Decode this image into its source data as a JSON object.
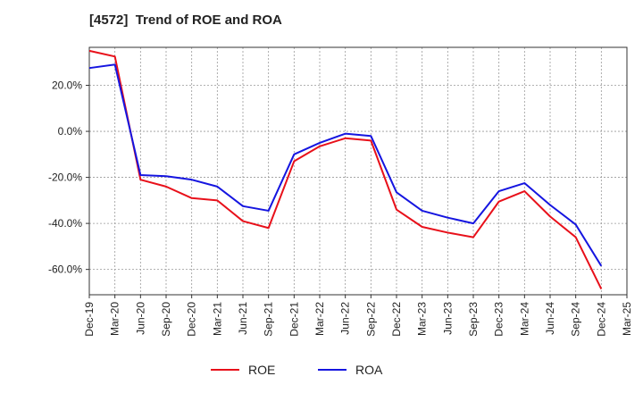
{
  "chart_data": {
    "type": "line",
    "title": "[4572]  Trend of ROE and ROA",
    "xlabel": "",
    "ylabel": "",
    "x_ticks": [
      "Dec-19",
      "Mar-20",
      "Jun-20",
      "Sep-20",
      "Dec-20",
      "Mar-21",
      "Jun-21",
      "Sep-21",
      "Dec-21",
      "Mar-22",
      "Jun-22",
      "Sep-22",
      "Dec-22",
      "Mar-23",
      "Jun-23",
      "Sep-23",
      "Dec-23",
      "Mar-24",
      "Jun-24",
      "Sep-24",
      "Dec-24",
      "Mar-25"
    ],
    "y_ticks": [
      "20.0%",
      "0.0%",
      "-20.0%",
      "-40.0%",
      "-60.0%"
    ],
    "y_tick_values": [
      20,
      0,
      -20,
      -40,
      -60
    ],
    "ylim": [
      -71,
      36.5
    ],
    "grid": true,
    "legend_position": "bottom-center",
    "series": [
      {
        "name": "ROE",
        "color": "#e8101a",
        "x": [
          "Dec-19",
          "Mar-20",
          "Jun-20",
          "Sep-20",
          "Dec-20",
          "Mar-21",
          "Jun-21",
          "Sep-21",
          "Dec-21",
          "Mar-22",
          "Jun-22",
          "Sep-22",
          "Dec-22",
          "Mar-23",
          "Jun-23",
          "Sep-23",
          "Dec-23",
          "Mar-24",
          "Jun-24",
          "Sep-24",
          "Dec-24"
        ],
        "values": [
          35,
          32.5,
          -21,
          -24,
          -29,
          -30,
          -39,
          -42,
          -13,
          -6.5,
          -3,
          -4,
          -34,
          -41.5,
          -44,
          -46,
          -30.5,
          -26,
          -37,
          -46,
          -68.5
        ]
      },
      {
        "name": "ROA",
        "color": "#1515e0",
        "x": [
          "Dec-19",
          "Mar-20",
          "Jun-20",
          "Sep-20",
          "Dec-20",
          "Mar-21",
          "Jun-21",
          "Sep-21",
          "Dec-21",
          "Mar-22",
          "Jun-22",
          "Sep-22",
          "Dec-22",
          "Mar-23",
          "Jun-23",
          "Sep-23",
          "Dec-23",
          "Mar-24",
          "Jun-24",
          "Sep-24",
          "Dec-24"
        ],
        "values": [
          27.5,
          29,
          -19,
          -19.5,
          -21,
          -24,
          -32.5,
          -34.5,
          -10,
          -5,
          -1,
          -2,
          -26.5,
          -34.5,
          -37.5,
          -40,
          -26,
          -22.5,
          -32,
          -40.5,
          -58.5
        ]
      }
    ]
  }
}
